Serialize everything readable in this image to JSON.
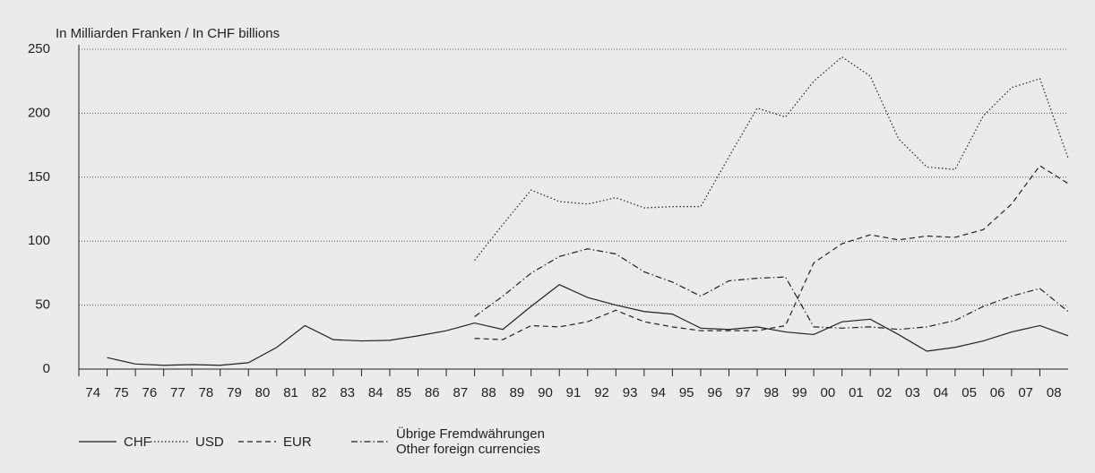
{
  "chart_data": {
    "type": "line",
    "y_label": "In Milliarden Franken / In CHF billions",
    "categories": [
      "74",
      "75",
      "76",
      "77",
      "78",
      "79",
      "80",
      "81",
      "82",
      "83",
      "84",
      "85",
      "86",
      "87",
      "88",
      "89",
      "90",
      "91",
      "92",
      "93",
      "94",
      "95",
      "96",
      "97",
      "98",
      "99",
      "00",
      "01",
      "02",
      "03",
      "04",
      "05",
      "06",
      "07",
      "08"
    ],
    "series": [
      {
        "name": "CHF",
        "color": "#222222",
        "dash": "solid",
        "values": [
          9,
          4,
          3,
          3.5,
          3,
          5,
          17,
          34,
          23,
          22,
          22.5,
          26,
          30,
          36,
          31,
          49,
          66,
          56,
          50,
          45,
          43,
          32,
          31,
          33,
          29,
          27,
          37,
          39,
          27,
          14,
          17,
          22,
          29,
          34,
          26
        ]
      },
      {
        "name": "USD",
        "color": "#222222",
        "dash": "dotted",
        "values": [
          null,
          null,
          null,
          null,
          null,
          null,
          null,
          null,
          null,
          null,
          null,
          null,
          null,
          85,
          113,
          140,
          131,
          129,
          134,
          126,
          127,
          127,
          166,
          204,
          197,
          225,
          244,
          229,
          180,
          158,
          156,
          198,
          220,
          227,
          165
        ]
      },
      {
        "name": "EUR",
        "color": "#222222",
        "dash": "dashed",
        "values": [
          null,
          null,
          null,
          null,
          null,
          null,
          null,
          null,
          null,
          null,
          null,
          null,
          null,
          24,
          23,
          34,
          33,
          37,
          46,
          37,
          33,
          30,
          30,
          30,
          34,
          83,
          98,
          105,
          101,
          104,
          103,
          109,
          129,
          159,
          145
        ]
      },
      {
        "name": "Übrige Fremdwährungen\nOther foreign currencies",
        "color": "#222222",
        "dash": "dashdot",
        "values": [
          null,
          null,
          null,
          null,
          null,
          null,
          null,
          null,
          null,
          null,
          null,
          null,
          null,
          41,
          57,
          75,
          88,
          94,
          90,
          76,
          68,
          57,
          69,
          71,
          72,
          33,
          32,
          33,
          31,
          33,
          38,
          49,
          57,
          63,
          45
        ]
      }
    ],
    "ylim": [
      0,
      250
    ],
    "yticks": [
      0,
      50,
      100,
      150,
      200,
      250
    ],
    "grid": true
  }
}
